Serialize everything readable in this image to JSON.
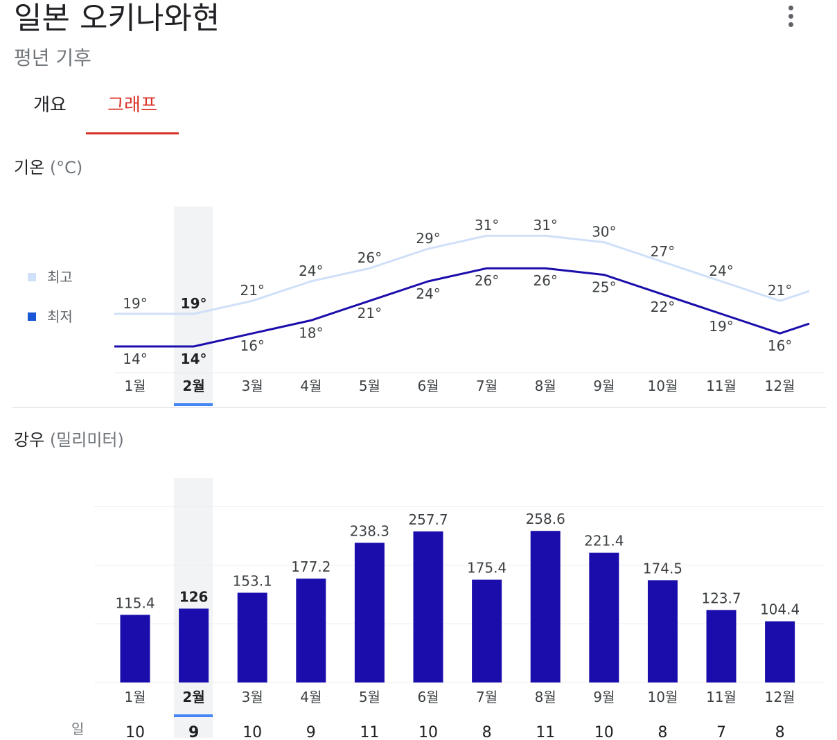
{
  "header": {
    "title": "일본 오키나와현",
    "subtitle": "평년 기후",
    "more_icon": "more-vert-icon"
  },
  "tabs": [
    {
      "label": "개요",
      "active": false
    },
    {
      "label": "그래프",
      "active": true
    }
  ],
  "colors": {
    "high_line": "#cfe0f8",
    "low_line": "#1a0dab",
    "bar": "#1a0dab",
    "selected_band": "#f1f3f4",
    "selected_underline": "#4285f4",
    "tab_active": "#d93025"
  },
  "selected_month_index": 1,
  "temperature": {
    "title": "기온",
    "unit": "(°C)",
    "legend": {
      "high": "최고",
      "low": "최저"
    }
  },
  "rain": {
    "title": "강우",
    "unit": "(밀리미터)",
    "days_label": "일"
  },
  "chart_data": [
    {
      "type": "line",
      "title": "기온 (°C)",
      "categories": [
        "1월",
        "2월",
        "3월",
        "4월",
        "5월",
        "6월",
        "7월",
        "8월",
        "9월",
        "10월",
        "11월",
        "12월"
      ],
      "series": [
        {
          "name": "최고",
          "values": [
            19,
            19,
            21,
            24,
            26,
            29,
            31,
            31,
            30,
            27,
            24,
            21
          ]
        },
        {
          "name": "최저",
          "values": [
            14,
            14,
            16,
            18,
            21,
            24,
            26,
            26,
            25,
            22,
            19,
            16
          ]
        }
      ],
      "value_suffix": "°",
      "legend": "left",
      "grid": false
    },
    {
      "type": "bar",
      "title": "강우 (밀리미터)",
      "categories": [
        "1월",
        "2월",
        "3월",
        "4월",
        "5월",
        "6월",
        "7월",
        "8월",
        "9월",
        "10월",
        "11월",
        "12월"
      ],
      "values": [
        115.4,
        126,
        153.1,
        177.2,
        238.3,
        257.7,
        175.4,
        258.6,
        221.4,
        174.5,
        123.7,
        104.4
      ],
      "days": [
        10,
        9,
        10,
        9,
        11,
        10,
        8,
        11,
        10,
        8,
        7,
        8
      ],
      "grid": true
    }
  ]
}
